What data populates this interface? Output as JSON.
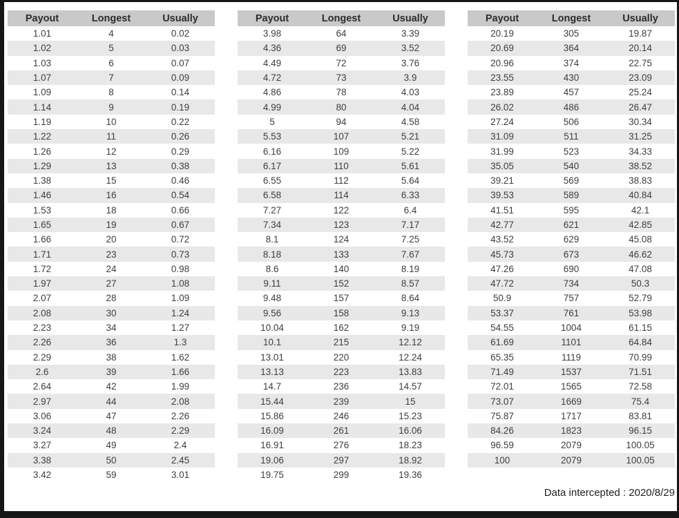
{
  "columns": [
    "Payout",
    "Longest",
    "Usually"
  ],
  "tables": [
    {
      "rows": [
        [
          "1.01",
          "4",
          "0.02"
        ],
        [
          "1.02",
          "5",
          "0.03"
        ],
        [
          "1.03",
          "6",
          "0.07"
        ],
        [
          "1.07",
          "7",
          "0.09"
        ],
        [
          "1.09",
          "8",
          "0.14"
        ],
        [
          "1.14",
          "9",
          "0.19"
        ],
        [
          "1.19",
          "10",
          "0.22"
        ],
        [
          "1.22",
          "11",
          "0.26"
        ],
        [
          "1.26",
          "12",
          "0.29"
        ],
        [
          "1.29",
          "13",
          "0.38"
        ],
        [
          "1.38",
          "15",
          "0.46"
        ],
        [
          "1.46",
          "16",
          "0.54"
        ],
        [
          "1.53",
          "18",
          "0.66"
        ],
        [
          "1.65",
          "19",
          "0.67"
        ],
        [
          "1.66",
          "20",
          "0.72"
        ],
        [
          "1.71",
          "23",
          "0.73"
        ],
        [
          "1.72",
          "24",
          "0.98"
        ],
        [
          "1.97",
          "27",
          "1.08"
        ],
        [
          "2.07",
          "28",
          "1.09"
        ],
        [
          "2.08",
          "30",
          "1.24"
        ],
        [
          "2.23",
          "34",
          "1.27"
        ],
        [
          "2.26",
          "36",
          "1.3"
        ],
        [
          "2.29",
          "38",
          "1.62"
        ],
        [
          "2.6",
          "39",
          "1.66"
        ],
        [
          "2.64",
          "42",
          "1.99"
        ],
        [
          "2.97",
          "44",
          "2.08"
        ],
        [
          "3.06",
          "47",
          "2.26"
        ],
        [
          "3.24",
          "48",
          "2.29"
        ],
        [
          "3.27",
          "49",
          "2.4"
        ],
        [
          "3.38",
          "50",
          "2.45"
        ],
        [
          "3.42",
          "59",
          "3.01"
        ]
      ]
    },
    {
      "rows": [
        [
          "3.98",
          "64",
          "3.39"
        ],
        [
          "4.36",
          "69",
          "3.52"
        ],
        [
          "4.49",
          "72",
          "3.76"
        ],
        [
          "4.72",
          "73",
          "3.9"
        ],
        [
          "4.86",
          "78",
          "4.03"
        ],
        [
          "4.99",
          "80",
          "4.04"
        ],
        [
          "5",
          "94",
          "4.58"
        ],
        [
          "5.53",
          "107",
          "5.21"
        ],
        [
          "6.16",
          "109",
          "5.22"
        ],
        [
          "6.17",
          "110",
          "5.61"
        ],
        [
          "6.55",
          "112",
          "5.64"
        ],
        [
          "6.58",
          "114",
          "6.33"
        ],
        [
          "7.27",
          "122",
          "6.4"
        ],
        [
          "7.34",
          "123",
          "7.17"
        ],
        [
          "8.1",
          "124",
          "7.25"
        ],
        [
          "8.18",
          "133",
          "7.67"
        ],
        [
          "8.6",
          "140",
          "8.19"
        ],
        [
          "9.11",
          "152",
          "8.57"
        ],
        [
          "9.48",
          "157",
          "8.64"
        ],
        [
          "9.56",
          "158",
          "9.13"
        ],
        [
          "10.04",
          "162",
          "9.19"
        ],
        [
          "10.1",
          "215",
          "12.12"
        ],
        [
          "13.01",
          "220",
          "12.24"
        ],
        [
          "13.13",
          "223",
          "13.83"
        ],
        [
          "14.7",
          "236",
          "14.57"
        ],
        [
          "15.44",
          "239",
          "15"
        ],
        [
          "15.86",
          "246",
          "15.23"
        ],
        [
          "16.09",
          "261",
          "16.06"
        ],
        [
          "16.91",
          "276",
          "18.23"
        ],
        [
          "19.06",
          "297",
          "18.92"
        ],
        [
          "19.75",
          "299",
          "19.36"
        ]
      ]
    },
    {
      "rows": [
        [
          "20.19",
          "305",
          "19.87"
        ],
        [
          "20.69",
          "364",
          "20.14"
        ],
        [
          "20.96",
          "374",
          "22.75"
        ],
        [
          "23.55",
          "430",
          "23.09"
        ],
        [
          "23.89",
          "457",
          "25.24"
        ],
        [
          "26.02",
          "486",
          "26.47"
        ],
        [
          "27.24",
          "506",
          "30.34"
        ],
        [
          "31.09",
          "511",
          "31.25"
        ],
        [
          "31.99",
          "523",
          "34.33"
        ],
        [
          "35.05",
          "540",
          "38.52"
        ],
        [
          "39.21",
          "569",
          "38.83"
        ],
        [
          "39.53",
          "589",
          "40.84"
        ],
        [
          "41.51",
          "595",
          "42.1"
        ],
        [
          "42.77",
          "621",
          "42.85"
        ],
        [
          "43.52",
          "629",
          "45.08"
        ],
        [
          "45.73",
          "673",
          "46.62"
        ],
        [
          "47.26",
          "690",
          "47.08"
        ],
        [
          "47.72",
          "734",
          "50.3"
        ],
        [
          "50.9",
          "757",
          "52.79"
        ],
        [
          "53.37",
          "761",
          "53.98"
        ],
        [
          "54.55",
          "1004",
          "61.15"
        ],
        [
          "61.69",
          "1101",
          "64.84"
        ],
        [
          "65.35",
          "1119",
          "70.99"
        ],
        [
          "71.49",
          "1537",
          "71.51"
        ],
        [
          "72.01",
          "1565",
          "72.58"
        ],
        [
          "73.07",
          "1669",
          "75.4"
        ],
        [
          "75.87",
          "1717",
          "83.81"
        ],
        [
          "84.26",
          "1823",
          "96.15"
        ],
        [
          "96.59",
          "2079",
          "100.05"
        ],
        [
          "100",
          "2079",
          "100.05"
        ]
      ]
    }
  ],
  "footer": {
    "label": "Data intercepted : 2020/8/29"
  },
  "colors": {
    "header_bg": "#c9c9c9",
    "stripe_bg": "#e8e8e8",
    "frame": "#161616"
  }
}
